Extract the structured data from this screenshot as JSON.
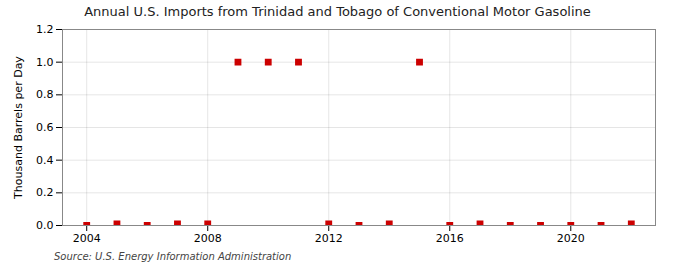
{
  "chart_data": {
    "type": "scatter",
    "title": "Annual U.S. Imports from Trinidad and Tobago of Conventional Motor Gasoline",
    "ylabel": "Thousand Barrels per Day",
    "caption": "Source: U.S. Energy Information Administration",
    "x": [
      2004,
      2005,
      2006,
      2007,
      2008,
      2009,
      2010,
      2011,
      2012,
      2013,
      2014,
      2015,
      2016,
      2017,
      2018,
      2019,
      2020,
      2021,
      2022
    ],
    "values": [
      0,
      0.01,
      0,
      0.01,
      0.01,
      1.0,
      1.0,
      1.0,
      0.01,
      0,
      0.01,
      1.0,
      0,
      0.01,
      0,
      0,
      0,
      0,
      0.01
    ],
    "color": "#cc0000",
    "marker": "square",
    "xlim": [
      2003.2,
      2022.8
    ],
    "xticks": [
      2004,
      2008,
      2012,
      2016,
      2020
    ],
    "ylim": [
      0,
      1.2
    ],
    "yticks": [
      {
        "value": 0.0,
        "label": "0.0"
      },
      0.2,
      0.4,
      0.6,
      0.8,
      {
        "value": 1.0,
        "label": "1.0"
      },
      1.2
    ],
    "grid": true
  }
}
